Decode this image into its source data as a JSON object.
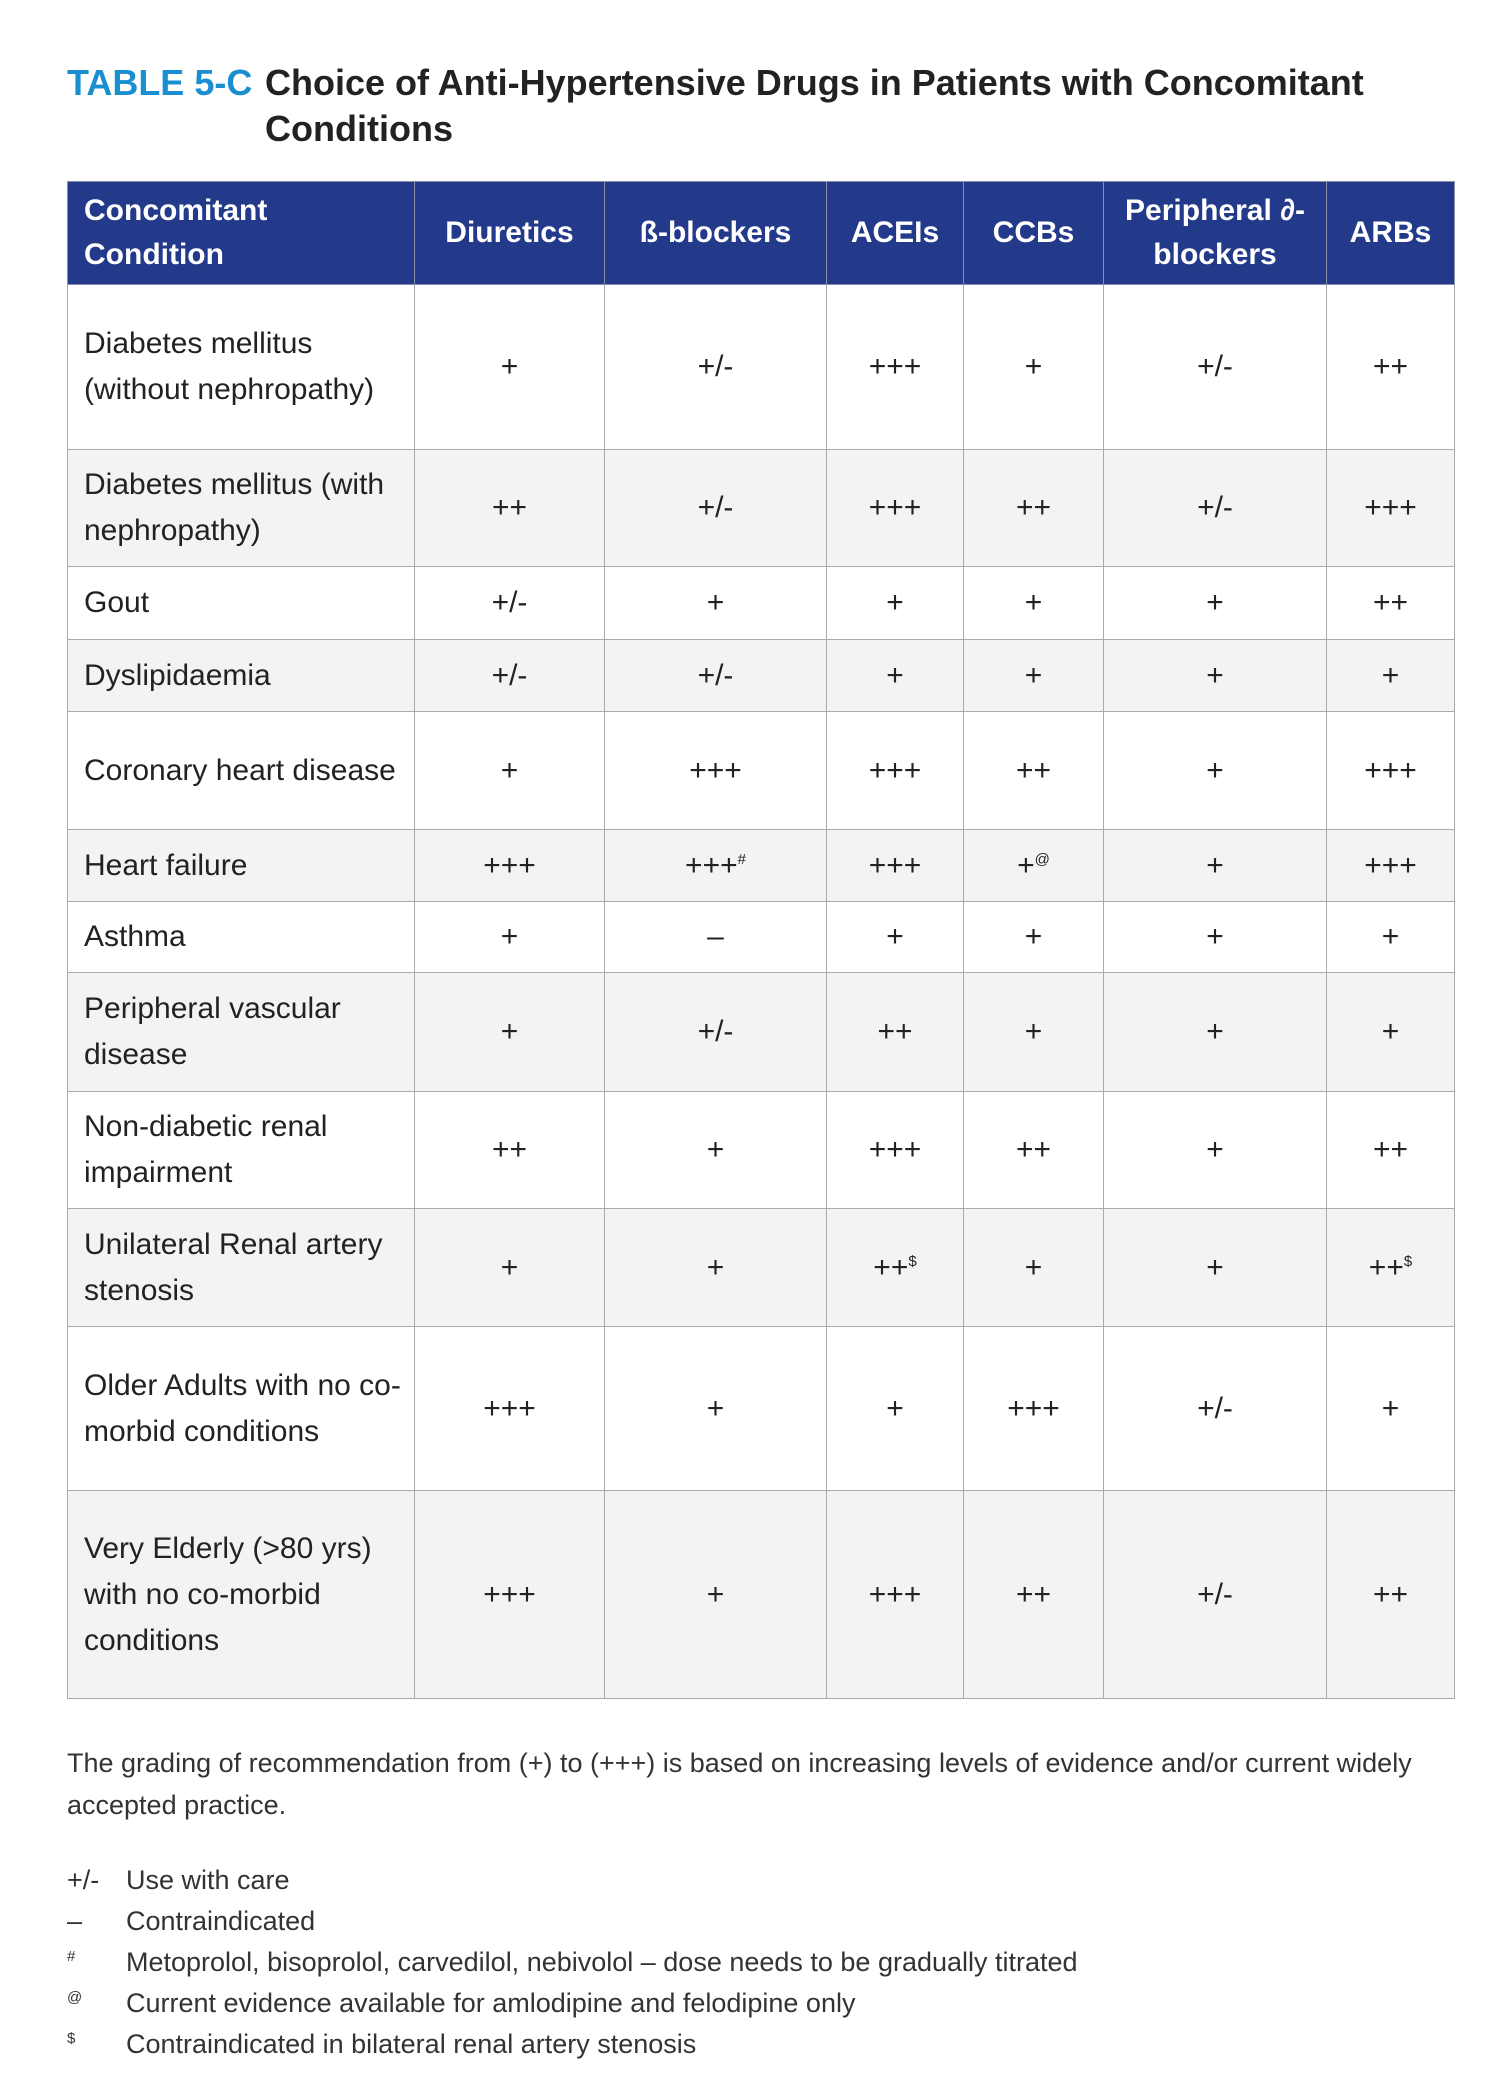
{
  "title": {
    "tag": "TABLE 5-C",
    "text": "Choice of Anti-Hypertensive Drugs in Patients with Concomitant Conditions"
  },
  "colors": {
    "title_accent": "#1a8fd0",
    "header_bg": "#233a8b",
    "alt_row_bg": "#f3f3f3"
  },
  "table": {
    "headers": [
      "Concomitant Condition",
      "Diuretics",
      "ß-blockers",
      "ACEIs",
      "CCBs",
      "Peripheral ∂-blockers",
      "ARBs"
    ],
    "rows": [
      {
        "condition": "Diabetes mellitus (without nephropathy)",
        "cells": [
          {
            "v": "+"
          },
          {
            "v": "+/-"
          },
          {
            "v": "+++"
          },
          {
            "v": "+"
          },
          {
            "v": "+/-"
          },
          {
            "v": "++"
          }
        ]
      },
      {
        "condition": "Diabetes mellitus (with nephropathy)",
        "cells": [
          {
            "v": "++"
          },
          {
            "v": "+/-"
          },
          {
            "v": "+++"
          },
          {
            "v": "++"
          },
          {
            "v": "+/-"
          },
          {
            "v": "+++"
          }
        ]
      },
      {
        "condition": "Gout",
        "cells": [
          {
            "v": "+/-"
          },
          {
            "v": "+"
          },
          {
            "v": "+"
          },
          {
            "v": "+"
          },
          {
            "v": "+"
          },
          {
            "v": "++"
          }
        ]
      },
      {
        "condition": "Dyslipidaemia",
        "cells": [
          {
            "v": "+/-"
          },
          {
            "v": "+/-"
          },
          {
            "v": "+"
          },
          {
            "v": "+"
          },
          {
            "v": "+"
          },
          {
            "v": "+"
          }
        ]
      },
      {
        "condition": "Coronary heart disease",
        "cells": [
          {
            "v": "+"
          },
          {
            "v": "+++"
          },
          {
            "v": "+++"
          },
          {
            "v": "++"
          },
          {
            "v": "+"
          },
          {
            "v": "+++"
          }
        ]
      },
      {
        "condition": "Heart failure",
        "cells": [
          {
            "v": "+++"
          },
          {
            "v": "+++",
            "sup": "#"
          },
          {
            "v": "+++"
          },
          {
            "v": "+",
            "sup": "@"
          },
          {
            "v": "+"
          },
          {
            "v": "+++"
          }
        ]
      },
      {
        "condition": "Asthma",
        "cells": [
          {
            "v": "+"
          },
          {
            "v": "–"
          },
          {
            "v": "+"
          },
          {
            "v": "+"
          },
          {
            "v": "+"
          },
          {
            "v": "+"
          }
        ]
      },
      {
        "condition": "Peripheral vascular disease",
        "cells": [
          {
            "v": "+"
          },
          {
            "v": "+/-"
          },
          {
            "v": "++"
          },
          {
            "v": "+"
          },
          {
            "v": "+"
          },
          {
            "v": "+"
          }
        ]
      },
      {
        "condition": "Non-diabetic renal impairment",
        "cells": [
          {
            "v": "++"
          },
          {
            "v": "+"
          },
          {
            "v": "+++"
          },
          {
            "v": "++"
          },
          {
            "v": "+"
          },
          {
            "v": "++"
          }
        ]
      },
      {
        "condition": "Unilateral Renal artery stenosis",
        "cells": [
          {
            "v": "+"
          },
          {
            "v": "+"
          },
          {
            "v": "++",
            "sup": "$"
          },
          {
            "v": "+"
          },
          {
            "v": "+"
          },
          {
            "v": "++",
            "sup": "$"
          }
        ]
      },
      {
        "condition": "Older Adults with no co-morbid conditions",
        "cells": [
          {
            "v": "+++"
          },
          {
            "v": "+"
          },
          {
            "v": "+"
          },
          {
            "v": "+++"
          },
          {
            "v": "+/-"
          },
          {
            "v": "+"
          }
        ]
      },
      {
        "condition": "Very Elderly (>80 yrs) with no co-morbid conditions",
        "cells": [
          {
            "v": "+++"
          },
          {
            "v": "+"
          },
          {
            "v": "+++"
          },
          {
            "v": "++"
          },
          {
            "v": "+/-"
          },
          {
            "v": "++"
          }
        ]
      }
    ]
  },
  "note": "The grading of recommendation from (+) to (+++) is based on increasing levels of evidence and/or current widely accepted practice.",
  "legend": [
    {
      "symbol": "+/-",
      "text": "Use with care"
    },
    {
      "symbol": "–",
      "text": "Contraindicated"
    },
    {
      "symbol": "#",
      "text": "Metoprolol, bisoprolol, carvedilol, nebivolol – dose needs to be gradually titrated"
    },
    {
      "symbol": "@",
      "text": "Current evidence available for amlodipine and felodipine only"
    },
    {
      "symbol": "$",
      "text": "Contraindicated in bilateral renal artery stenosis"
    }
  ]
}
